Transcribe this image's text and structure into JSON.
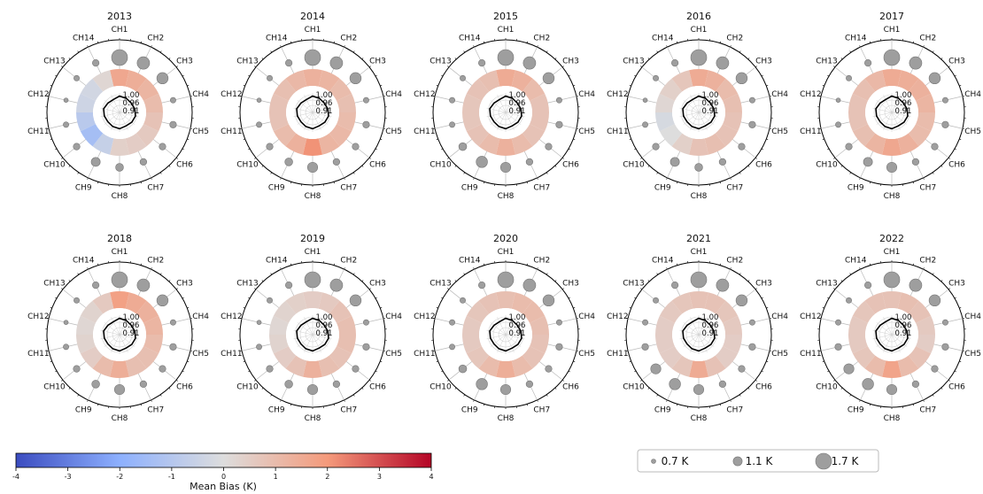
{
  "chart_data": {
    "type": "polar",
    "channels": [
      "CH1",
      "CH2",
      "CH3",
      "CH4",
      "CH5",
      "CH6",
      "CH7",
      "CH8",
      "CH9",
      "CH10",
      "CH11",
      "CH12",
      "CH13",
      "CH14"
    ],
    "ring_labels": [
      "1.00",
      "0.96",
      "0.91"
    ],
    "colorbar": {
      "label": "Mean Bias (K)",
      "range": [
        -4,
        4
      ],
      "ticks": [
        "-4",
        "-3",
        "-2",
        "-1",
        "0",
        "1",
        "2",
        "3",
        "4"
      ]
    },
    "size_legend": [
      {
        "label": "0.7 K",
        "value": 0.7
      },
      {
        "label": "1.1 K",
        "value": 1.1
      },
      {
        "label": "1.7 K",
        "value": 1.7
      }
    ],
    "years": [
      {
        "title": "2013",
        "bias": [
          1.6,
          1.4,
          1.2,
          1.0,
          0.8,
          0.6,
          0.5,
          0.4,
          -0.6,
          -1.4,
          -0.9,
          -0.4,
          -0.3,
          0.2
        ],
        "std": [
          1.7,
          1.4,
          1.3,
          0.8,
          0.9,
          0.9,
          0.9,
          1.0,
          1.1,
          0.9,
          0.8,
          0.7,
          0.8,
          0.9
        ],
        "corr": [
          0.99,
          0.985,
          0.98,
          0.985,
          0.99,
          0.985,
          0.98,
          0.99,
          0.985,
          0.98,
          0.985,
          0.99,
          0.98,
          0.975
        ]
      },
      {
        "title": "2014",
        "bias": [
          1.3,
          1.2,
          1.0,
          0.9,
          1.0,
          1.1,
          1.2,
          2.1,
          1.3,
          1.0,
          0.8,
          0.8,
          0.9,
          1.1
        ],
        "std": [
          1.7,
          1.4,
          1.3,
          0.8,
          0.9,
          0.9,
          0.9,
          1.2,
          1.0,
          0.9,
          0.8,
          0.7,
          0.8,
          0.9
        ],
        "corr": [
          0.99,
          0.985,
          0.98,
          0.985,
          0.99,
          0.985,
          0.98,
          0.99,
          0.985,
          0.98,
          0.985,
          0.99,
          0.98,
          0.975
        ]
      },
      {
        "title": "2015",
        "bias": [
          1.5,
          1.3,
          1.0,
          0.8,
          0.8,
          0.8,
          1.0,
          1.3,
          1.0,
          0.8,
          0.7,
          0.7,
          0.8,
          0.9
        ],
        "std": [
          1.7,
          1.4,
          1.3,
          0.8,
          0.9,
          0.9,
          0.9,
          1.2,
          1.3,
          1.0,
          0.8,
          0.8,
          0.8,
          0.9
        ],
        "corr": [
          0.99,
          0.985,
          0.98,
          0.985,
          0.99,
          0.985,
          0.98,
          0.99,
          0.985,
          0.98,
          0.985,
          0.99,
          0.98,
          0.975
        ]
      },
      {
        "title": "2016",
        "bias": [
          1.5,
          1.3,
          1.0,
          0.9,
          0.8,
          0.8,
          0.9,
          0.8,
          0.4,
          0.0,
          -0.2,
          0.2,
          0.4,
          0.7
        ],
        "std": [
          1.7,
          1.4,
          1.3,
          0.8,
          0.9,
          0.9,
          0.9,
          1.0,
          1.1,
          0.9,
          0.8,
          0.7,
          0.8,
          0.9
        ],
        "corr": [
          0.99,
          0.985,
          0.98,
          0.985,
          0.99,
          0.985,
          0.98,
          0.99,
          0.985,
          0.98,
          0.985,
          0.99,
          0.98,
          0.975
        ]
      },
      {
        "title": "2017",
        "bias": [
          1.5,
          1.4,
          1.3,
          1.2,
          1.0,
          1.0,
          1.3,
          1.6,
          1.2,
          0.9,
          0.8,
          0.8,
          0.9,
          1.1
        ],
        "std": [
          1.7,
          1.4,
          1.3,
          0.8,
          0.9,
          0.9,
          0.9,
          1.2,
          1.1,
          0.9,
          0.8,
          0.7,
          0.8,
          0.9
        ],
        "corr": [
          0.99,
          0.985,
          0.98,
          0.985,
          0.99,
          0.985,
          0.98,
          0.99,
          0.985,
          0.98,
          0.985,
          0.99,
          0.98,
          0.975
        ]
      },
      {
        "title": "2018",
        "bias": [
          1.8,
          1.5,
          1.3,
          1.2,
          1.0,
          0.9,
          0.9,
          1.4,
          1.0,
          0.5,
          0.3,
          0.2,
          0.3,
          0.6
        ],
        "std": [
          1.7,
          1.4,
          1.3,
          0.8,
          0.9,
          0.9,
          0.9,
          1.2,
          1.0,
          0.9,
          0.8,
          0.7,
          0.8,
          0.9
        ],
        "corr": [
          0.99,
          0.985,
          0.98,
          0.985,
          0.99,
          0.985,
          0.98,
          0.99,
          0.985,
          0.98,
          0.985,
          0.99,
          0.98,
          0.975
        ]
      },
      {
        "title": "2019",
        "bias": [
          0.5,
          0.6,
          0.8,
          0.9,
          0.9,
          0.8,
          0.9,
          1.3,
          0.8,
          0.5,
          0.3,
          0.2,
          0.3,
          0.4
        ],
        "std": [
          1.7,
          1.4,
          1.3,
          0.8,
          0.9,
          0.9,
          0.9,
          1.2,
          1.0,
          0.9,
          0.8,
          0.7,
          0.8,
          0.9
        ],
        "corr": [
          0.99,
          0.985,
          0.98,
          0.985,
          0.99,
          0.985,
          0.98,
          0.99,
          0.985,
          0.98,
          0.985,
          0.99,
          0.98,
          0.975
        ]
      },
      {
        "title": "2020",
        "bias": [
          0.9,
          1.0,
          1.0,
          0.9,
          0.8,
          0.8,
          1.0,
          1.4,
          1.0,
          0.7,
          0.6,
          0.6,
          0.7,
          0.8
        ],
        "std": [
          1.7,
          1.4,
          1.3,
          0.8,
          0.9,
          0.9,
          0.9,
          1.2,
          1.3,
          1.0,
          0.8,
          0.8,
          0.8,
          0.9
        ],
        "corr": [
          0.99,
          0.985,
          0.98,
          0.985,
          0.99,
          0.985,
          0.98,
          0.99,
          0.985,
          0.98,
          0.985,
          0.99,
          0.98,
          0.975
        ]
      },
      {
        "title": "2021",
        "bias": [
          0.8,
          0.8,
          0.7,
          0.6,
          0.5,
          0.5,
          0.8,
          1.5,
          0.7,
          0.5,
          0.5,
          0.5,
          0.6,
          0.7
        ],
        "std": [
          1.7,
          1.4,
          1.3,
          0.8,
          0.9,
          0.9,
          0.9,
          1.2,
          1.3,
          1.2,
          0.9,
          0.8,
          0.8,
          0.9
        ],
        "corr": [
          0.99,
          0.985,
          0.98,
          0.985,
          0.99,
          0.985,
          0.98,
          0.99,
          0.985,
          0.98,
          0.985,
          0.99,
          0.98,
          0.975
        ]
      },
      {
        "title": "2022",
        "bias": [
          0.8,
          0.9,
          0.8,
          0.6,
          0.5,
          0.8,
          1.0,
          1.7,
          1.0,
          0.7,
          0.6,
          0.6,
          0.7,
          0.8
        ],
        "std": [
          1.7,
          1.4,
          1.3,
          0.8,
          0.9,
          0.9,
          0.9,
          1.2,
          1.3,
          1.2,
          0.9,
          0.8,
          0.8,
          0.9
        ],
        "corr": [
          0.99,
          0.985,
          0.98,
          0.985,
          0.99,
          0.985,
          0.98,
          0.99,
          0.985,
          0.98,
          0.985,
          0.99,
          0.98,
          0.975
        ]
      }
    ]
  }
}
